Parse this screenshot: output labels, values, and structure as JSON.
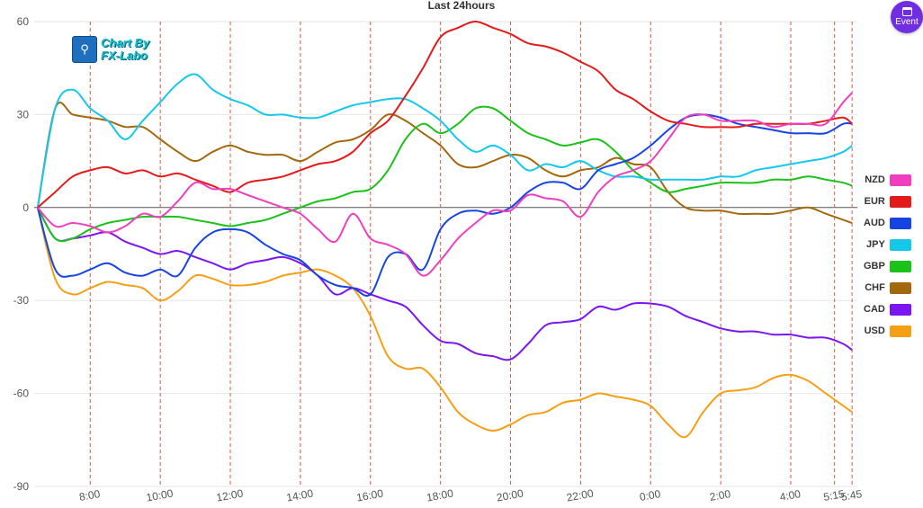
{
  "chart_data": {
    "type": "line",
    "title": "Last 24hours",
    "ylim": [
      -90,
      60
    ],
    "yticks": [
      60,
      30,
      0,
      -30,
      -60,
      -90
    ],
    "xlim": [
      6.4,
      29.9
    ],
    "xticks": [
      {
        "x": 8,
        "label": "8:00"
      },
      {
        "x": 10,
        "label": "10:00"
      },
      {
        "x": 12,
        "label": "12:00"
      },
      {
        "x": 14,
        "label": "14:00"
      },
      {
        "x": 16,
        "label": "16:00"
      },
      {
        "x": 18,
        "label": "18:00"
      },
      {
        "x": 20,
        "label": "20:00"
      },
      {
        "x": 22,
        "label": "22:00"
      },
      {
        "x": 24,
        "label": "0:00"
      },
      {
        "x": 26,
        "label": "2:00"
      },
      {
        "x": 28,
        "label": "4:00"
      },
      {
        "x": 29.25,
        "label": "5:15"
      },
      {
        "x": 29.75,
        "label": "5:45"
      }
    ],
    "x": [
      6.5,
      7.0,
      7.5,
      8.0,
      8.5,
      9.0,
      9.5,
      10.0,
      10.5,
      11.0,
      11.5,
      12.0,
      12.5,
      13.0,
      13.5,
      14.0,
      14.5,
      15.0,
      15.5,
      16.0,
      16.5,
      17.0,
      17.5,
      18.0,
      18.5,
      19.0,
      19.5,
      20.0,
      20.5,
      21.0,
      21.5,
      22.0,
      22.5,
      23.0,
      23.5,
      24.0,
      24.5,
      25.0,
      25.5,
      26.0,
      26.5,
      27.0,
      27.5,
      28.0,
      28.5,
      29.0,
      29.5,
      29.75
    ],
    "series": [
      {
        "name": "NZD",
        "color": "#ef3fbf",
        "values": [
          0,
          -6,
          -5,
          -6,
          -8,
          -6,
          -2,
          -3,
          2,
          8,
          6,
          6,
          4,
          2,
          0,
          -2,
          -7,
          -11,
          -2,
          -10,
          -12,
          -15,
          -22,
          -17,
          -10,
          -5,
          -1,
          -1,
          4,
          3,
          2,
          -3,
          5,
          10,
          12,
          15,
          22,
          29,
          30,
          28,
          28,
          28,
          26,
          27,
          27,
          27,
          34,
          37
        ]
      },
      {
        "name": "EUR",
        "color": "#e41a1a",
        "values": [
          0,
          5,
          10,
          12,
          13,
          11,
          12,
          10,
          11,
          9,
          7,
          5,
          8,
          9,
          10,
          12,
          14,
          15,
          18,
          24,
          28,
          36,
          45,
          55,
          58,
          60,
          58,
          56,
          53,
          52,
          50,
          47,
          44,
          38,
          35,
          31,
          28,
          27,
          26,
          26,
          26,
          27,
          27,
          27,
          27,
          28,
          29,
          27
        ]
      },
      {
        "name": "AUD",
        "color": "#1544e3",
        "values": [
          0,
          -20,
          -22,
          -20,
          -18,
          -21,
          -22,
          -20,
          -22,
          -13,
          -8,
          -7,
          -8,
          -12,
          -15,
          -17,
          -22,
          -25,
          -26,
          -28,
          -16,
          -15,
          -20,
          -7,
          -2,
          -1,
          -2,
          0,
          5,
          8,
          8,
          6,
          12,
          14,
          16,
          20,
          25,
          29,
          30,
          29,
          27,
          26,
          25,
          24,
          24,
          24,
          27,
          27
        ]
      },
      {
        "name": "JPY",
        "color": "#15c8ea",
        "values": [
          0,
          32,
          38,
          32,
          28,
          22,
          28,
          34,
          40,
          43,
          38,
          35,
          33,
          30,
          30,
          29,
          29,
          31,
          33,
          34,
          35,
          35,
          32,
          28,
          22,
          18,
          20,
          17,
          12,
          14,
          13,
          15,
          12,
          10,
          10,
          9,
          9,
          9,
          9,
          10,
          10,
          12,
          13,
          14,
          15,
          16,
          18,
          20
        ]
      },
      {
        "name": "GBP",
        "color": "#1ac219",
        "values": [
          0,
          -10,
          -10,
          -7,
          -5,
          -4,
          -3,
          -3,
          -3,
          -4,
          -5,
          -6,
          -5,
          -4,
          -2,
          0,
          2,
          3,
          5,
          6,
          12,
          22,
          27,
          24,
          27,
          32,
          32,
          28,
          24,
          22,
          20,
          21,
          22,
          18,
          12,
          8,
          5,
          6,
          7,
          8,
          8,
          8,
          9,
          9,
          10,
          9,
          8,
          7
        ]
      },
      {
        "name": "CHF",
        "color": "#a3680e",
        "values": [
          0,
          32,
          30,
          29,
          28,
          26,
          26,
          22,
          18,
          15,
          18,
          20,
          18,
          17,
          17,
          15,
          18,
          21,
          22,
          25,
          30,
          28,
          24,
          20,
          14,
          13,
          15,
          17,
          16,
          12,
          10,
          12,
          13,
          16,
          14,
          13,
          5,
          0,
          -1,
          -1,
          -2,
          -2,
          -2,
          -1,
          0,
          -2,
          -4,
          -5
        ]
      },
      {
        "name": "CAD",
        "color": "#7b16f1",
        "values": [
          0,
          -10,
          -10,
          -9,
          -8,
          -11,
          -13,
          -15,
          -14,
          -16,
          -18,
          -20,
          -18,
          -17,
          -16,
          -18,
          -22,
          -28,
          -26,
          -28,
          -30,
          -32,
          -38,
          -43,
          -44,
          -47,
          -48,
          -49,
          -44,
          -38,
          -37,
          -36,
          -32,
          -33,
          -31,
          -31,
          -32,
          -35,
          -37,
          -39,
          -40,
          -40,
          -41,
          -41,
          -42,
          -42,
          -44,
          -46
        ]
      },
      {
        "name": "USD",
        "color": "#f59f14",
        "values": [
          0,
          -23,
          -28,
          -26,
          -24,
          -25,
          -26,
          -30,
          -27,
          -22,
          -23,
          -25,
          -25,
          -24,
          -22,
          -21,
          -20,
          -22,
          -26,
          -35,
          -48,
          -52,
          -52,
          -58,
          -66,
          -70,
          -72,
          -70,
          -67,
          -66,
          -63,
          -62,
          -60,
          -61,
          -62,
          -64,
          -70,
          -74,
          -66,
          -60,
          -59,
          -58,
          -55,
          -54,
          -56,
          -60,
          -64,
          -66
        ]
      }
    ]
  },
  "legend_title": "",
  "event_button": {
    "label": "Event"
  },
  "logo": {
    "line1": "Chart By",
    "line2": "FX-Labo"
  }
}
